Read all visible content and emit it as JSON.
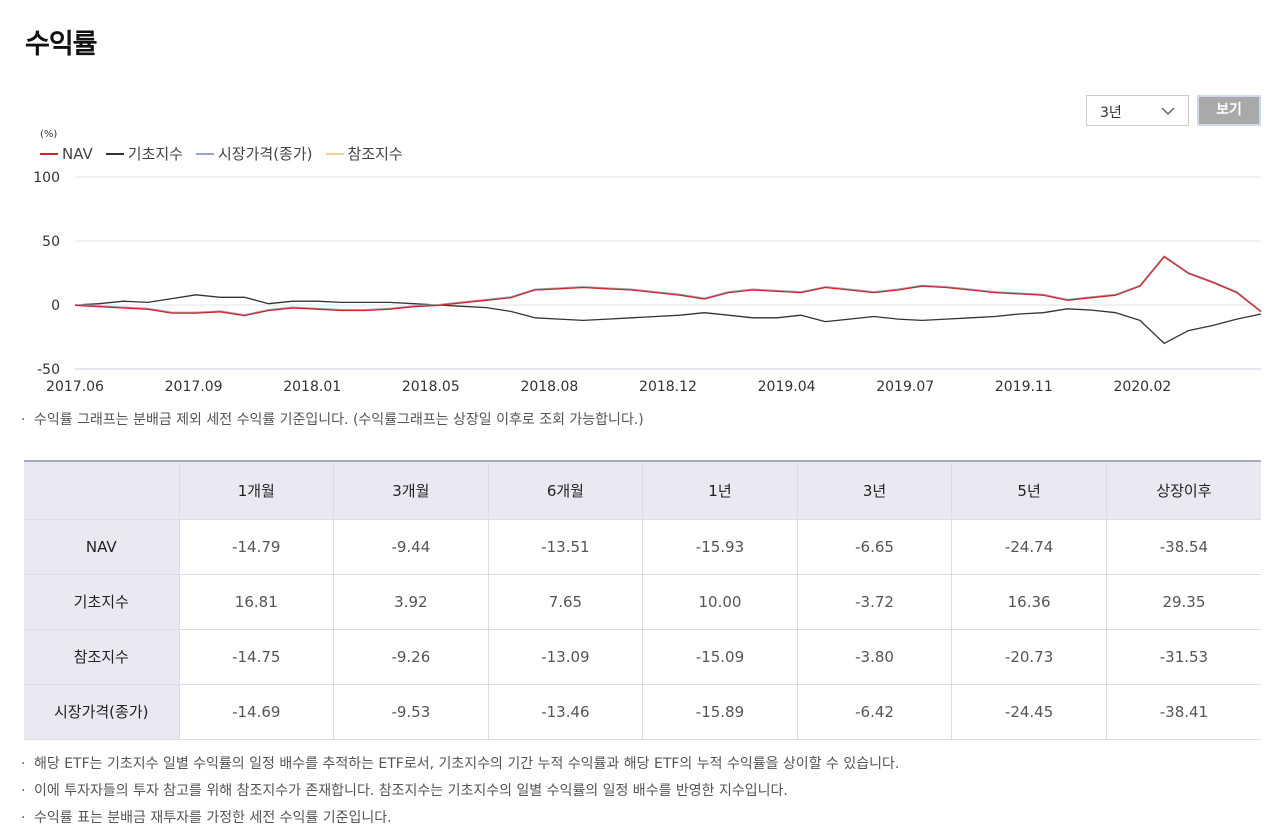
{
  "page": {
    "title": "수익률"
  },
  "controls": {
    "period_value": "3년",
    "view_label": "보기"
  },
  "chart_data": {
    "type": "line",
    "unit_label": "(%)",
    "ylim": [
      -50,
      100
    ],
    "yticks": [
      "100",
      "50",
      "0",
      "-50"
    ],
    "ytick_values": [
      100,
      50,
      0,
      -50
    ],
    "x_labels": [
      "2017.06",
      "2017.09",
      "2018.01",
      "2018.05",
      "2018.08",
      "2018.12",
      "2019.04",
      "2019.07",
      "2019.11",
      "2020.02"
    ],
    "series": [
      {
        "name": "NAV",
        "color": "#d0272b",
        "values": [
          0,
          -1,
          -2,
          -3,
          -6,
          -6,
          -5,
          -8,
          -4,
          -2,
          -3,
          -4,
          -4,
          -3,
          -1,
          0,
          2,
          4,
          6,
          12,
          13,
          14,
          13,
          12,
          10,
          8,
          5,
          10,
          12,
          11,
          10,
          14,
          12,
          10,
          12,
          15,
          14,
          12,
          10,
          9,
          8,
          4,
          6,
          8,
          15,
          38,
          25,
          18,
          10,
          -5
        ]
      },
      {
        "name": "기초지수",
        "color": "#333333",
        "values": [
          0,
          1,
          3,
          2,
          5,
          8,
          6,
          6,
          1,
          3,
          3,
          2,
          2,
          2,
          1,
          0,
          -1,
          -2,
          -5,
          -10,
          -11,
          -12,
          -11,
          -10,
          -9,
          -8,
          -6,
          -8,
          -10,
          -10,
          -8,
          -13,
          -11,
          -9,
          -11,
          -12,
          -11,
          -10,
          -9,
          -7,
          -6,
          -3,
          -4,
          -6,
          -12,
          -30,
          -20,
          -16,
          -11,
          -7
        ]
      },
      {
        "name": "시장가격(종가)",
        "color": "#9aa4cf",
        "values": [
          0,
          -1,
          -2,
          -3,
          -6,
          -6,
          -5,
          -8,
          -4,
          -2,
          -3,
          -4,
          -4,
          -3,
          -1,
          0,
          2,
          4,
          6,
          12,
          13,
          14,
          13,
          12,
          10,
          8,
          5,
          10,
          12,
          11,
          10,
          14,
          12,
          10,
          12,
          15,
          14,
          12,
          10,
          9,
          8,
          4,
          6,
          8,
          15,
          38,
          25,
          18,
          10,
          -5
        ]
      },
      {
        "name": "참조지수",
        "color": "#f7cf8f",
        "values": [
          0,
          -1,
          -2,
          -3,
          -6,
          -6,
          -5,
          -8,
          -4,
          -2,
          -3,
          -4,
          -4,
          -3,
          -1,
          0,
          2,
          4,
          6,
          12,
          13,
          14,
          13,
          12,
          10,
          8,
          5,
          10,
          12,
          11,
          10,
          14,
          12,
          10,
          12,
          15,
          14,
          12,
          10,
          9,
          8,
          4,
          6,
          8,
          15,
          38,
          25,
          18,
          10,
          -5
        ]
      }
    ]
  },
  "chart_note": "수익률 그래프는 분배금 제외 세전 수익률 기준입니다. (수익률그래프는 상장일 이후로 조회 가능합니다.)",
  "table": {
    "headers": [
      "",
      "1개월",
      "3개월",
      "6개월",
      "1년",
      "3년",
      "5년",
      "상장이후"
    ],
    "rows": [
      {
        "label": "NAV",
        "values": [
          "-14.79",
          "-9.44",
          "-13.51",
          "-15.93",
          "-6.65",
          "-24.74",
          "-38.54"
        ]
      },
      {
        "label": "기초지수",
        "values": [
          "16.81",
          "3.92",
          "7.65",
          "10.00",
          "-3.72",
          "16.36",
          "29.35"
        ]
      },
      {
        "label": "참조지수",
        "values": [
          "-14.75",
          "-9.26",
          "-13.09",
          "-15.09",
          "-3.80",
          "-20.73",
          "-31.53"
        ]
      },
      {
        "label": "시장가격(종가)",
        "values": [
          "-14.69",
          "-9.53",
          "-13.46",
          "-15.89",
          "-6.42",
          "-24.45",
          "-38.41"
        ]
      }
    ]
  },
  "footnotes": [
    "해당 ETF는 기초지수 일별 수익률의 일정 배수를 추적하는 ETF로서, 기초지수의 기간 누적 수익률과 해당 ETF의 누적 수익률을 상이할 수 있습니다.",
    "이에 투자자들의 투자 참고를 위해 참조지수가 존재합니다. 참조지수는 기초지수의 일별 수익률의 일정 배수를 반영한 지수입니다.",
    "수익률 표는 분배금 재투자를 가정한 세전 수익률 기준입니다."
  ]
}
